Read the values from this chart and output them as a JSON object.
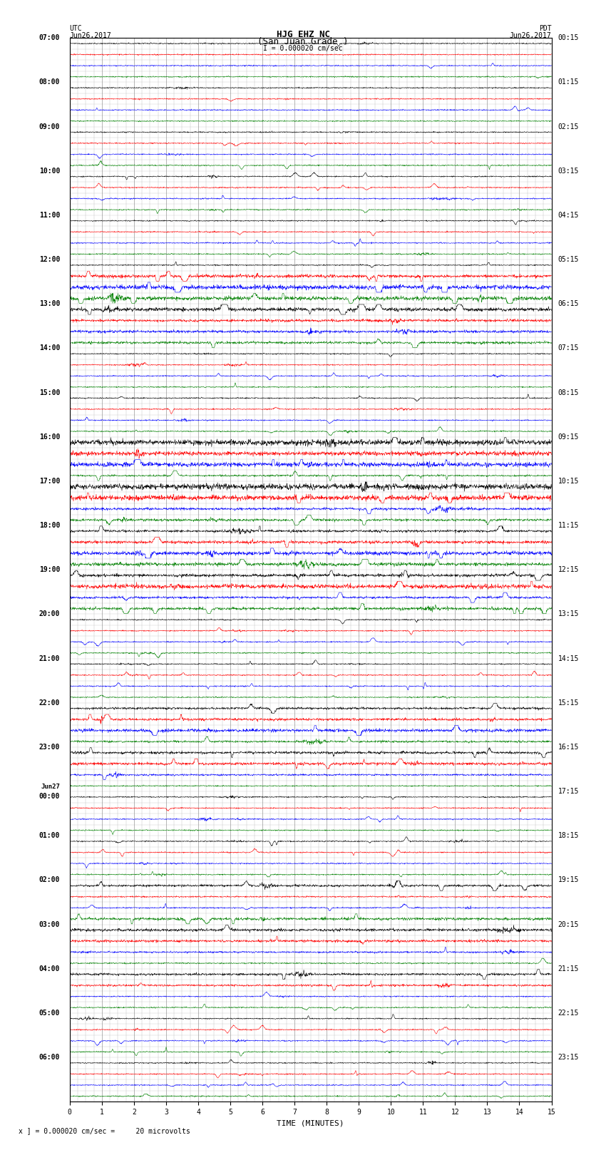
{
  "title_line1": "HJG EHZ NC",
  "title_line2": "(San Juan Grade )",
  "scale_label": "I = 0.000020 cm/sec",
  "utc_label": "UTC",
  "utc_date": "Jun26,2017",
  "pdt_label": "PDT",
  "pdt_date": "Jun26,2017",
  "bottom_label": "x ] = 0.000020 cm/sec =     20 microvolts",
  "xlabel": "TIME (MINUTES)",
  "x_tick_labels": [
    "0",
    "1",
    "2",
    "3",
    "4",
    "5",
    "6",
    "7",
    "8",
    "9",
    "10",
    "11",
    "12",
    "13",
    "14",
    "15"
  ],
  "x_ticks": [
    0,
    1,
    2,
    3,
    4,
    5,
    6,
    7,
    8,
    9,
    10,
    11,
    12,
    13,
    14,
    15
  ],
  "left_times": [
    "07:00",
    "08:00",
    "09:00",
    "10:00",
    "11:00",
    "12:00",
    "13:00",
    "14:00",
    "15:00",
    "16:00",
    "17:00",
    "18:00",
    "19:00",
    "20:00",
    "21:00",
    "22:00",
    "23:00",
    "Jun27\n00:00",
    "01:00",
    "02:00",
    "03:00",
    "04:00",
    "05:00",
    "06:00"
  ],
  "right_times": [
    "00:15",
    "01:15",
    "02:15",
    "03:15",
    "04:15",
    "05:15",
    "06:15",
    "07:15",
    "08:15",
    "09:15",
    "10:15",
    "11:15",
    "12:15",
    "13:15",
    "14:15",
    "15:15",
    "16:15",
    "17:15",
    "18:15",
    "19:15",
    "20:15",
    "21:15",
    "22:15",
    "23:15"
  ],
  "n_rows": 96,
  "x_min": 0,
  "x_max": 15,
  "colors": [
    "black",
    "red",
    "blue",
    "green"
  ],
  "bg_color": "#ffffff",
  "grid_color": "#999999",
  "fig_width": 8.5,
  "fig_height": 16.13,
  "dpi": 100,
  "font_size_title": 9,
  "font_size_labels": 7,
  "font_size_ticks": 7,
  "font_size_axis": 8
}
